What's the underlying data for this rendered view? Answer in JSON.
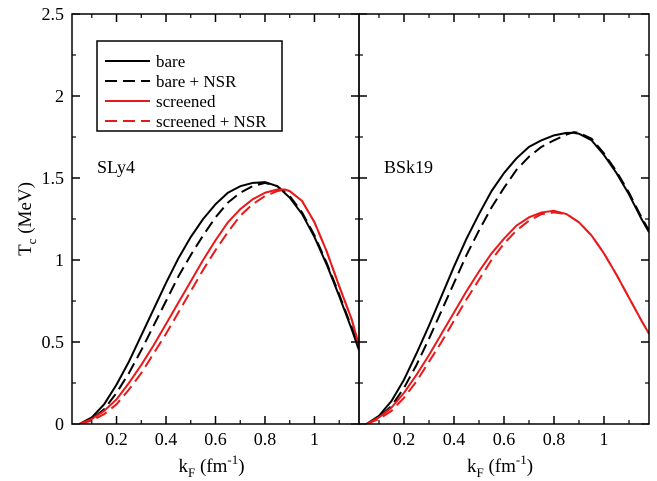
{
  "chart_data": [
    {
      "type": "line",
      "panel_label": "SLy4",
      "xlabel": "k_F (fm^-1)",
      "ylabel": "T_c (MeV)",
      "xlim": [
        0.02,
        1.18
      ],
      "ylim": [
        0,
        2.5
      ],
      "x_ticks": [
        "0.2",
        "0.4",
        "0.6",
        "0.8",
        "1"
      ],
      "y_ticks": [
        "0",
        "0.5",
        "1",
        "1.5",
        "2",
        "2.5"
      ],
      "grid": false,
      "legend_position": "top-left",
      "series": [
        {
          "name": "bare",
          "color": "#000000",
          "dash": "solid",
          "x": [
            0.05,
            0.1,
            0.15,
            0.2,
            0.25,
            0.3,
            0.35,
            0.4,
            0.45,
            0.5,
            0.55,
            0.6,
            0.65,
            0.7,
            0.75,
            0.8,
            0.85,
            0.9,
            0.95,
            1.0,
            1.05,
            1.1,
            1.15,
            1.18
          ],
          "y": [
            0.0,
            0.04,
            0.12,
            0.24,
            0.38,
            0.54,
            0.7,
            0.86,
            1.01,
            1.14,
            1.25,
            1.34,
            1.41,
            1.45,
            1.47,
            1.475,
            1.45,
            1.38,
            1.28,
            1.14,
            0.97,
            0.78,
            0.58,
            0.45
          ]
        },
        {
          "name": "bare + NSR",
          "color": "#000000",
          "dash": "dashed",
          "x": [
            0.05,
            0.1,
            0.15,
            0.2,
            0.25,
            0.3,
            0.35,
            0.4,
            0.45,
            0.5,
            0.55,
            0.6,
            0.65,
            0.7,
            0.75,
            0.8,
            0.85,
            0.9,
            0.95,
            1.0,
            1.05,
            1.1,
            1.15,
            1.18
          ],
          "y": [
            0.0,
            0.03,
            0.09,
            0.19,
            0.31,
            0.45,
            0.6,
            0.75,
            0.9,
            1.03,
            1.15,
            1.26,
            1.35,
            1.41,
            1.45,
            1.47,
            1.45,
            1.39,
            1.29,
            1.15,
            0.98,
            0.79,
            0.59,
            0.46
          ]
        },
        {
          "name": "screened",
          "color": "#e8191a",
          "dash": "solid",
          "x": [
            0.05,
            0.1,
            0.15,
            0.2,
            0.25,
            0.3,
            0.35,
            0.4,
            0.45,
            0.5,
            0.55,
            0.6,
            0.65,
            0.7,
            0.75,
            0.8,
            0.85,
            0.88,
            0.9,
            0.95,
            1.0,
            1.05,
            1.1,
            1.15,
            1.18
          ],
          "y": [
            0.0,
            0.03,
            0.08,
            0.15,
            0.25,
            0.36,
            0.48,
            0.61,
            0.74,
            0.87,
            1.0,
            1.12,
            1.23,
            1.31,
            1.37,
            1.41,
            1.43,
            1.43,
            1.42,
            1.36,
            1.23,
            1.05,
            0.84,
            0.64,
            0.48
          ]
        },
        {
          "name": "screened + NSR",
          "color": "#e8191a",
          "dash": "dashed",
          "x": [
            0.05,
            0.1,
            0.15,
            0.2,
            0.25,
            0.3,
            0.35,
            0.4,
            0.45,
            0.5,
            0.55,
            0.6,
            0.65,
            0.7,
            0.75,
            0.8,
            0.85,
            0.88,
            0.9,
            0.95,
            1.0,
            1.05,
            1.1,
            1.15,
            1.18
          ],
          "y": [
            0.0,
            0.02,
            0.06,
            0.12,
            0.21,
            0.31,
            0.43,
            0.55,
            0.68,
            0.81,
            0.94,
            1.06,
            1.17,
            1.27,
            1.34,
            1.39,
            1.42,
            1.43,
            1.42,
            1.36,
            1.23,
            1.05,
            0.84,
            0.64,
            0.48
          ]
        }
      ]
    },
    {
      "type": "line",
      "panel_label": "BSk19",
      "xlabel": "k_F (fm^-1)",
      "ylabel": "",
      "xlim": [
        0.02,
        1.18
      ],
      "ylim": [
        0,
        2.5
      ],
      "x_ticks": [
        "0.2",
        "0.4",
        "0.6",
        "0.8",
        "1"
      ],
      "y_ticks": [],
      "grid": false,
      "series": [
        {
          "name": "bare",
          "color": "#000000",
          "dash": "solid",
          "x": [
            0.05,
            0.1,
            0.15,
            0.2,
            0.25,
            0.3,
            0.35,
            0.4,
            0.45,
            0.5,
            0.55,
            0.6,
            0.65,
            0.7,
            0.75,
            0.8,
            0.85,
            0.88,
            0.9,
            0.95,
            1.0,
            1.05,
            1.1,
            1.15,
            1.18
          ],
          "y": [
            0.0,
            0.05,
            0.14,
            0.27,
            0.43,
            0.6,
            0.78,
            0.96,
            1.13,
            1.28,
            1.42,
            1.53,
            1.62,
            1.69,
            1.73,
            1.76,
            1.775,
            1.775,
            1.77,
            1.73,
            1.64,
            1.53,
            1.4,
            1.25,
            1.17
          ]
        },
        {
          "name": "bare + NSR",
          "color": "#000000",
          "dash": "dashed",
          "x": [
            0.05,
            0.1,
            0.15,
            0.2,
            0.25,
            0.3,
            0.35,
            0.4,
            0.45,
            0.5,
            0.55,
            0.6,
            0.65,
            0.7,
            0.75,
            0.8,
            0.85,
            0.88,
            0.9,
            0.95,
            1.0,
            1.05,
            1.1,
            1.15,
            1.18
          ],
          "y": [
            0.0,
            0.04,
            0.11,
            0.22,
            0.36,
            0.52,
            0.69,
            0.86,
            1.03,
            1.18,
            1.32,
            1.44,
            1.55,
            1.63,
            1.69,
            1.73,
            1.765,
            1.78,
            1.775,
            1.74,
            1.65,
            1.54,
            1.41,
            1.26,
            1.18
          ]
        },
        {
          "name": "screened",
          "color": "#e8191a",
          "dash": "solid",
          "x": [
            0.05,
            0.1,
            0.15,
            0.2,
            0.25,
            0.3,
            0.35,
            0.4,
            0.45,
            0.5,
            0.55,
            0.6,
            0.65,
            0.7,
            0.75,
            0.8,
            0.85,
            0.9,
            0.95,
            1.0,
            1.05,
            1.1,
            1.15,
            1.18
          ],
          "y": [
            0.0,
            0.04,
            0.1,
            0.19,
            0.3,
            0.42,
            0.55,
            0.68,
            0.81,
            0.93,
            1.04,
            1.13,
            1.21,
            1.26,
            1.29,
            1.3,
            1.28,
            1.23,
            1.15,
            1.04,
            0.91,
            0.77,
            0.63,
            0.55
          ]
        },
        {
          "name": "screened + NSR",
          "color": "#e8191a",
          "dash": "dashed",
          "x": [
            0.05,
            0.1,
            0.15,
            0.2,
            0.25,
            0.3,
            0.35,
            0.4,
            0.45,
            0.5,
            0.55,
            0.6,
            0.65,
            0.7,
            0.75,
            0.8,
            0.85,
            0.9,
            0.95,
            1.0,
            1.05,
            1.1,
            1.15,
            1.18
          ],
          "y": [
            0.0,
            0.03,
            0.08,
            0.16,
            0.26,
            0.38,
            0.5,
            0.63,
            0.76,
            0.88,
            1.0,
            1.1,
            1.18,
            1.24,
            1.28,
            1.29,
            1.28,
            1.23,
            1.15,
            1.04,
            0.91,
            0.77,
            0.63,
            0.55
          ]
        }
      ]
    }
  ]
}
